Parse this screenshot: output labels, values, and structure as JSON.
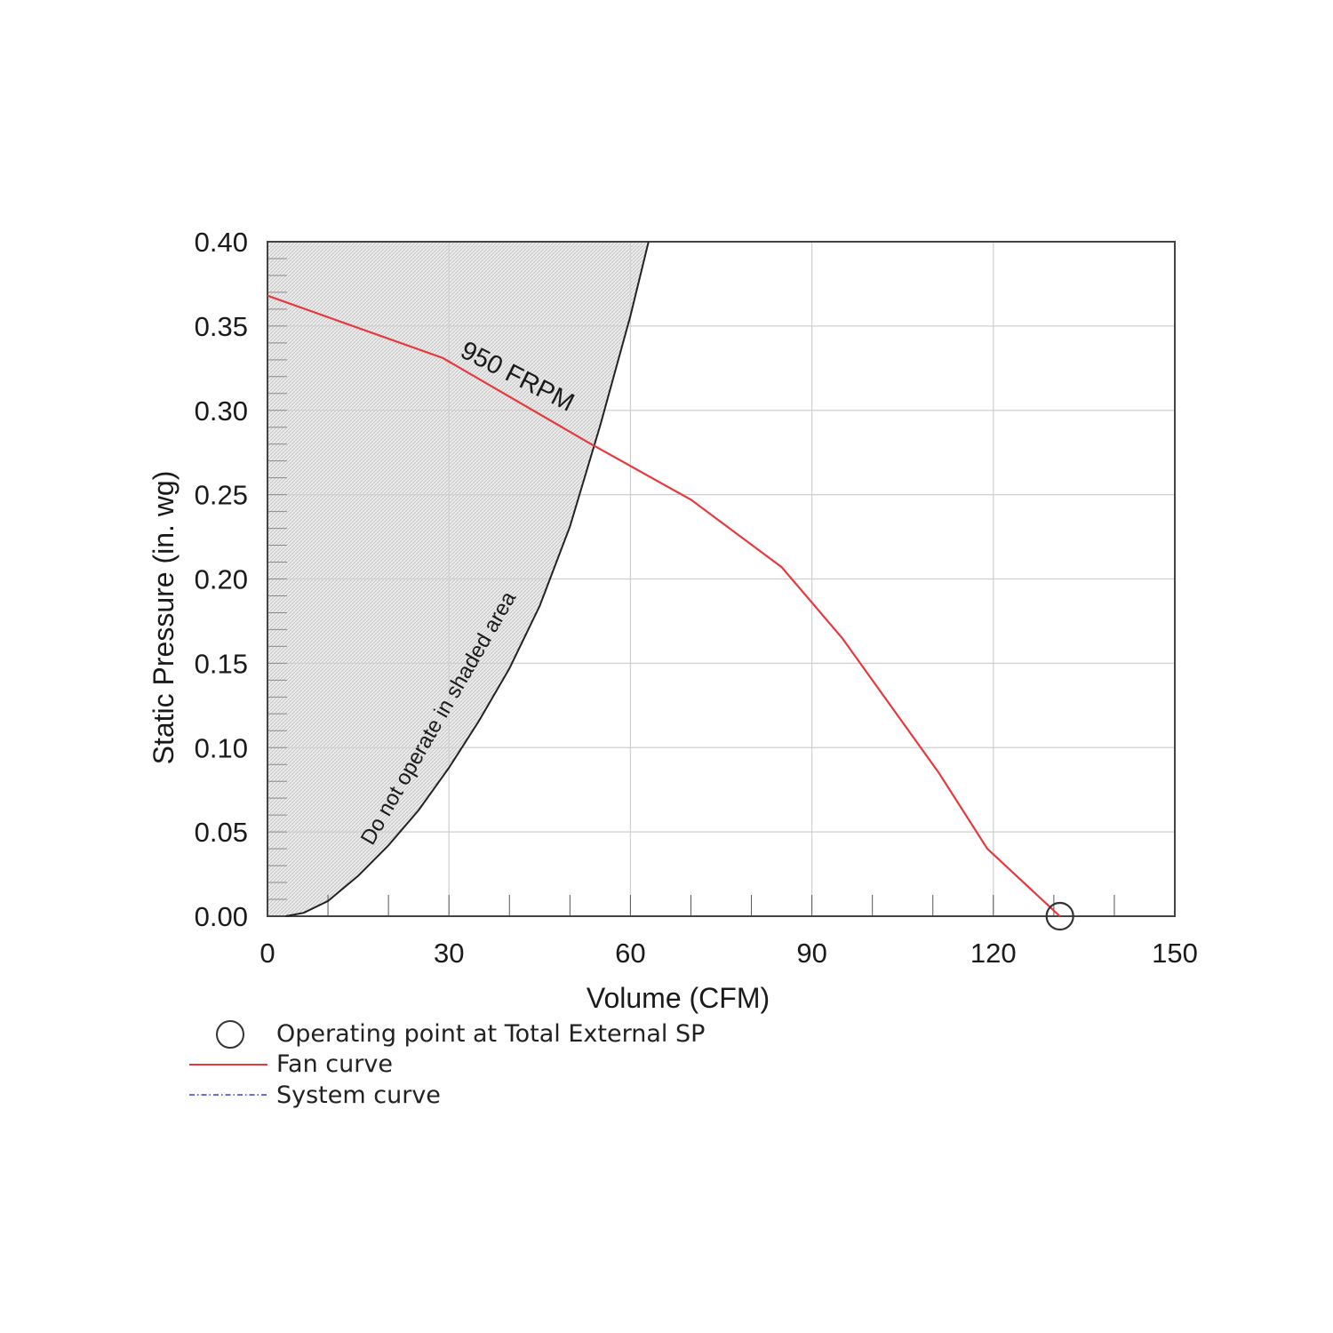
{
  "chart_data": {
    "type": "line",
    "xlabel": "Volume (CFM)",
    "ylabel": "Static Pressure (in. wg)",
    "xlim": [
      0,
      150
    ],
    "ylim": [
      0,
      0.4
    ],
    "xticks": [
      0,
      30,
      60,
      90,
      120,
      150
    ],
    "yticks": [
      0.0,
      0.05,
      0.1,
      0.15,
      0.2,
      0.25,
      0.3,
      0.35,
      0.4
    ],
    "xtick_labels": [
      "0",
      "30",
      "60",
      "90",
      "120",
      "150"
    ],
    "ytick_labels": [
      "0.00",
      "0.05",
      "0.10",
      "0.15",
      "0.20",
      "0.25",
      "0.30",
      "0.35",
      "0.40"
    ],
    "grid": true,
    "series": [
      {
        "name": "Fan curve",
        "color": "#e8383d",
        "x": [
          0,
          29,
          53,
          70,
          85,
          95,
          111,
          119,
          131
        ],
        "y": [
          0.368,
          0.331,
          0.281,
          0.247,
          0.207,
          0.165,
          0.085,
          0.04,
          0.0
        ]
      }
    ],
    "limit_curve": {
      "color": "#222222",
      "x": [
        3,
        6,
        10,
        15,
        20,
        25,
        30,
        35,
        40,
        45,
        50,
        55,
        60,
        63
      ],
      "y": [
        0.0,
        0.002,
        0.009,
        0.024,
        0.042,
        0.063,
        0.088,
        0.116,
        0.147,
        0.184,
        0.231,
        0.291,
        0.356,
        0.4
      ]
    },
    "operating_point": {
      "x": 131,
      "y": 0.0
    },
    "annotations": {
      "rpm": "950 FRPM",
      "shaded": "Do not operate in shaded area"
    },
    "legend": {
      "operating_point": "Operating point at Total External SP",
      "fan_curve": "Fan curve",
      "system_curve": "System curve",
      "system_curve_color": "#3a3ae0"
    }
  }
}
